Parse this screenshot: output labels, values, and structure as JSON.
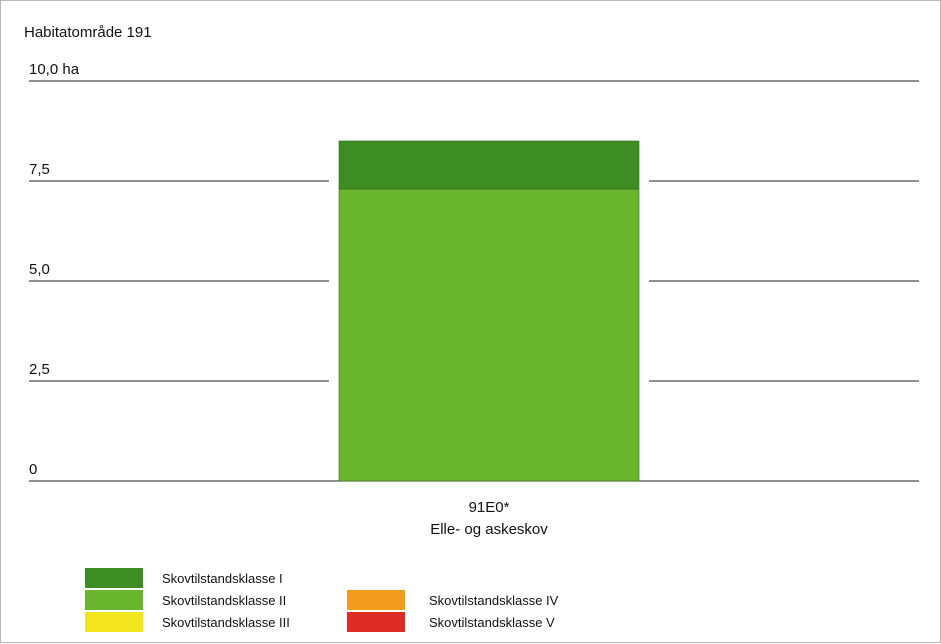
{
  "chart_data": {
    "type": "bar",
    "stacked": true,
    "title": "Habitatområde 191",
    "y_unit": "ha",
    "ylim": [
      0,
      10
    ],
    "yticks": [
      {
        "value": 0,
        "label": "0"
      },
      {
        "value": 2.5,
        "label": "2,5"
      },
      {
        "value": 5,
        "label": "5,0"
      },
      {
        "value": 7.5,
        "label": "7,5"
      },
      {
        "value": 10,
        "label": "10,0 ha"
      }
    ],
    "grid": true,
    "categories": [
      {
        "code": "91E0*",
        "name": "Elle- og askeskov"
      }
    ],
    "series": [
      {
        "name": "Skovtilstandsklasse I",
        "color": "#3e8c24",
        "values": [
          1.2
        ]
      },
      {
        "name": "Skovtilstandsklasse II",
        "color": "#69b52e",
        "values": [
          7.3
        ]
      },
      {
        "name": "Skovtilstandsklasse III",
        "color": "#f2e51e",
        "values": [
          0
        ]
      },
      {
        "name": "Skovtilstandsklasse IV",
        "color": "#f29b1c",
        "values": [
          0
        ]
      },
      {
        "name": "Skovtilstandsklasse V",
        "color": "#de2b23",
        "values": [
          0
        ]
      }
    ],
    "legend_position": "bottom-left"
  }
}
